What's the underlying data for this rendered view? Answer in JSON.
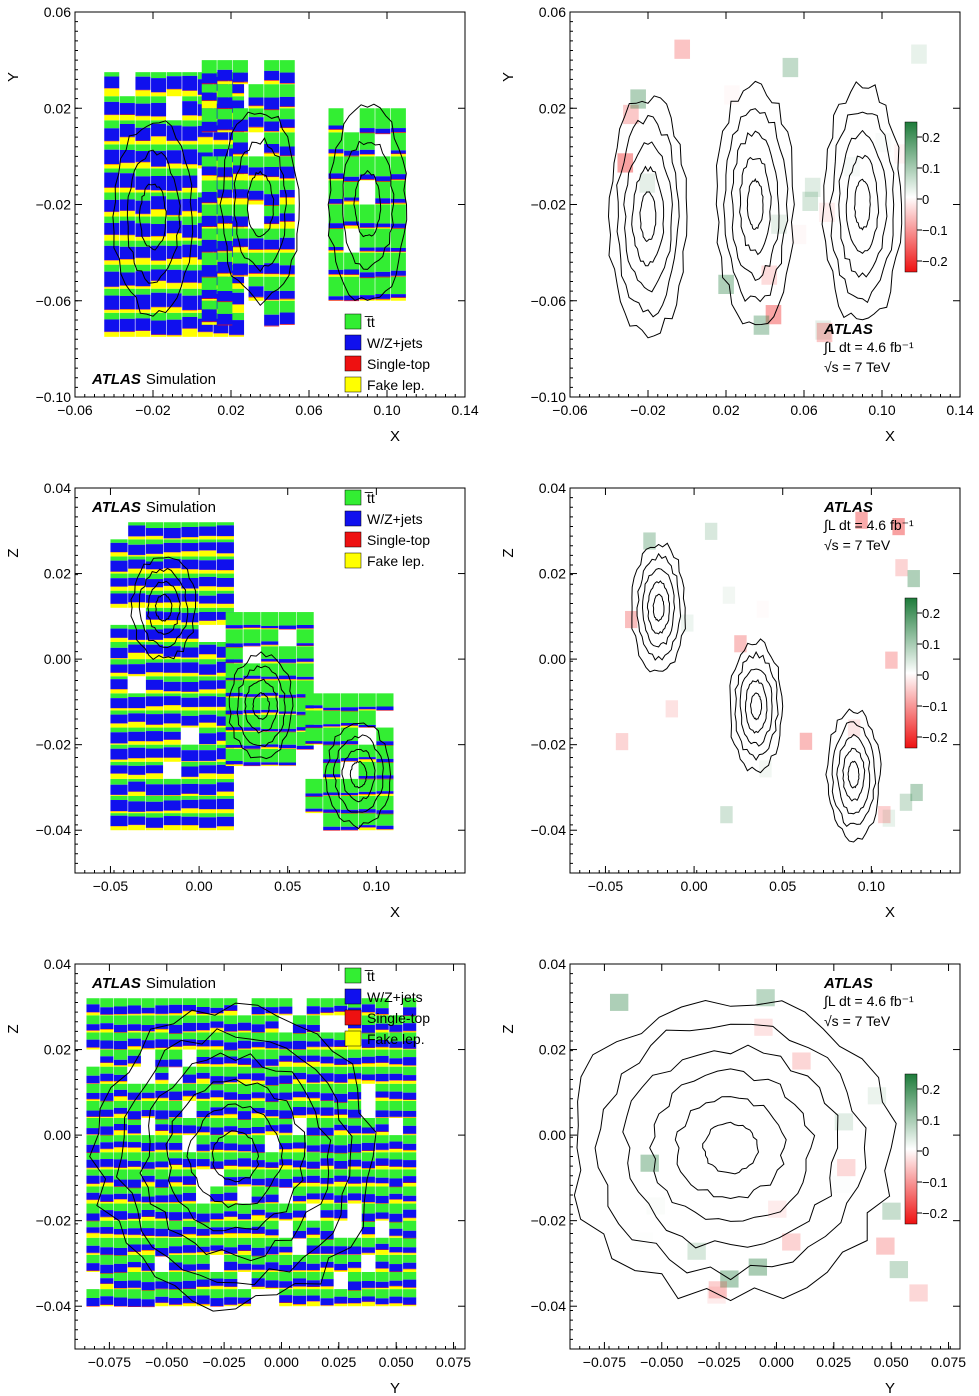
{
  "atlas": {
    "label": "ATLAS",
    "simulation": "Simulation",
    "lumi": "∫L dt = 4.6 fb⁻¹",
    "energy": "√s = 7  TeV"
  },
  "legend": [
    {
      "key": "ttbar",
      "label": "t̅t",
      "color": "#33ee33"
    },
    {
      "key": "wz",
      "label": "W/Z+jets",
      "color": "#1010ee"
    },
    {
      "key": "single",
      "label": "Single-top",
      "color": "#ee1111"
    },
    {
      "key": "fake",
      "label": "Fake lep.",
      "color": "#ffff00"
    }
  ],
  "colorbar_ticks": [
    "0.2",
    "0.1",
    "0",
    "−0.1",
    "−0.2"
  ],
  "chart_data": [
    {
      "type": "heatmap",
      "title": "",
      "xlabel": "X",
      "ylabel": "Y",
      "xlim": [
        -0.06,
        0.14
      ],
      "ylim": [
        -0.1,
        0.06
      ],
      "xticks": [
        -0.06,
        -0.02,
        0.02,
        0.06,
        0.1,
        0.14
      ],
      "xtick_labels": [
        "−0.06",
        "−0.02",
        "0.02",
        "0.06",
        "0.10",
        "0.14"
      ],
      "yticks": [
        0.06,
        0.02,
        -0.02,
        -0.06,
        -0.1
      ],
      "ytick_labels": [
        "0.06",
        "0.02",
        "−0.02",
        "−0.06",
        "−0.10"
      ],
      "composition": "stacked fractions per bin: tt̅, W/Z+jets, Single-top, Fake lep.",
      "clusters": [
        {
          "x_range": [
            -0.045,
            0.02
          ],
          "y_range": [
            -0.075,
            0.035
          ],
          "dominant": "W/Z+jets"
        },
        {
          "x_range": [
            0.005,
            0.05
          ],
          "y_range": [
            -0.07,
            0.032
          ],
          "dominant": "mixed"
        },
        {
          "x_range": [
            0.07,
            0.105
          ],
          "y_range": [
            -0.06,
            0.02
          ],
          "dominant": "tt̅"
        }
      ]
    },
    {
      "type": "heatmap",
      "title": "",
      "xlabel": "X",
      "ylabel": "Y",
      "xlim": [
        -0.06,
        0.14
      ],
      "ylim": [
        -0.1,
        0.06
      ],
      "xticks": [
        -0.06,
        -0.02,
        0.02,
        0.06,
        0.1,
        0.14
      ],
      "xtick_labels": [
        "−0.06",
        "−0.02",
        "0.02",
        "0.06",
        "0.10",
        "0.14"
      ],
      "yticks": [
        0.06,
        0.02,
        -0.02,
        -0.06,
        -0.1
      ],
      "ytick_labels": [
        "0.06",
        "0.02",
        "−0.02",
        "−0.06",
        "−0.10"
      ],
      "colorbar": {
        "min": -0.25,
        "max": 0.25
      },
      "contour_centers": [
        [
          -0.02,
          -0.025
        ],
        [
          0.035,
          -0.02
        ],
        [
          0.09,
          -0.02
        ]
      ]
    },
    {
      "type": "heatmap",
      "title": "",
      "xlabel": "X",
      "ylabel": "Z",
      "xlim": [
        -0.07,
        0.15
      ],
      "ylim": [
        -0.05,
        0.04
      ],
      "xticks": [
        -0.05,
        0.0,
        0.05,
        0.1
      ],
      "xtick_labels": [
        "−0.05",
        "0.00",
        "0.05",
        "0.10"
      ],
      "yticks": [
        0.04,
        0.02,
        0.0,
        -0.02,
        -0.04
      ],
      "ytick_labels": [
        "0.04",
        "0.02",
        "0.00",
        "−0.02",
        "−0.04"
      ],
      "composition": "stacked fractions per bin: tt̅, W/Z+jets, Single-top, Fake lep.",
      "clusters": [
        {
          "x_range": [
            -0.05,
            0.02
          ],
          "y_range": [
            -0.04,
            0.032
          ],
          "dominant": "W/Z+jets"
        },
        {
          "x_range": [
            0.015,
            0.06
          ],
          "y_range": [
            -0.025,
            0.01
          ],
          "dominant": "tt̅"
        },
        {
          "x_range": [
            0.06,
            0.105
          ],
          "y_range": [
            -0.04,
            -0.008
          ],
          "dominant": "tt̅"
        }
      ]
    },
    {
      "type": "heatmap",
      "title": "",
      "xlabel": "X",
      "ylabel": "Z",
      "xlim": [
        -0.07,
        0.15
      ],
      "ylim": [
        -0.05,
        0.04
      ],
      "xticks": [
        -0.05,
        0.0,
        0.05,
        0.1
      ],
      "xtick_labels": [
        "−0.05",
        "0.00",
        "0.05",
        "0.10"
      ],
      "yticks": [
        0.04,
        0.02,
        0.0,
        -0.02,
        -0.04
      ],
      "ytick_labels": [
        "0.04",
        "0.02",
        "0.00",
        "−0.02",
        "−0.04"
      ],
      "colorbar": {
        "min": -0.25,
        "max": 0.25
      },
      "contour_centers": [
        [
          -0.02,
          0.012
        ],
        [
          0.035,
          -0.011
        ],
        [
          0.09,
          -0.027
        ]
      ]
    },
    {
      "type": "heatmap",
      "title": "",
      "xlabel": "Y",
      "ylabel": "Z",
      "xlim": [
        -0.09,
        0.08
      ],
      "ylim": [
        -0.05,
        0.04
      ],
      "xticks": [
        -0.075,
        -0.05,
        -0.025,
        0.0,
        0.025,
        0.05,
        0.075
      ],
      "xtick_labels": [
        "−0.075",
        "−0.050",
        "−0.025",
        "0.000",
        "0.025",
        "0.050",
        "0.075"
      ],
      "yticks": [
        0.04,
        0.02,
        0.0,
        -0.02,
        -0.04
      ],
      "ytick_labels": [
        "0.04",
        "0.02",
        "0.00",
        "−0.02",
        "−0.04"
      ],
      "composition": "stacked fractions per bin: tt̅, W/Z+jets, Single-top, Fake lep.",
      "clusters": [
        {
          "x_range": [
            -0.085,
            0.055
          ],
          "y_range": [
            -0.04,
            0.032
          ],
          "dominant": "mixed"
        }
      ]
    },
    {
      "type": "heatmap",
      "title": "",
      "xlabel": "Y",
      "ylabel": "Z",
      "xlim": [
        -0.09,
        0.08
      ],
      "ylim": [
        -0.05,
        0.04
      ],
      "xticks": [
        -0.075,
        -0.05,
        -0.025,
        0.0,
        0.025,
        0.05,
        0.075
      ],
      "xtick_labels": [
        "−0.075",
        "−0.050",
        "−0.025",
        "0.000",
        "0.025",
        "0.050",
        "0.075"
      ],
      "yticks": [
        0.04,
        0.02,
        0.0,
        -0.02,
        -0.04
      ],
      "ytick_labels": [
        "0.04",
        "0.02",
        "0.00",
        "−0.02",
        "−0.04"
      ],
      "colorbar": {
        "min": -0.25,
        "max": 0.25
      },
      "contour_centers": [
        [
          -0.03,
          0.012
        ]
      ]
    }
  ]
}
